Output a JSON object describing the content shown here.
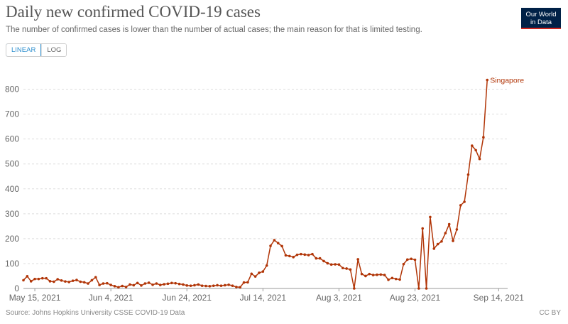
{
  "header": {
    "title": "Daily new confirmed COVID-19 cases",
    "subtitle": "The number of confirmed cases is lower than the number of actual cases; the main reason for that is limited testing."
  },
  "logo": {
    "line1": "Our World",
    "line2": "in Data",
    "accent": "#ce261e",
    "background": "#002147"
  },
  "scale_toggle": {
    "linear_label": "LINEAR",
    "log_label": "LOG",
    "selected": "LINEAR"
  },
  "footer": {
    "source": "Source: Johns Hopkins University CSSE COVID-19 Data",
    "license": "CC BY"
  },
  "chart_data": {
    "type": "line",
    "x_start": "2021-05-12",
    "x_end": "2021-09-16",
    "x_tick_labels": [
      "May 15, 2021",
      "Jun 4, 2021",
      "Jun 24, 2021",
      "Jul 14, 2021",
      "Aug 3, 2021",
      "Aug 23, 2021",
      "Sep 14, 2021"
    ],
    "x_tick_dates": [
      "2021-05-15",
      "2021-06-04",
      "2021-06-24",
      "2021-07-14",
      "2021-08-03",
      "2021-08-23",
      "2021-09-14"
    ],
    "ylim": [
      0,
      850
    ],
    "y_ticks": [
      0,
      100,
      200,
      300,
      400,
      500,
      600,
      700,
      800
    ],
    "y_tick_labels": [
      "0",
      "100",
      "200",
      "300",
      "400",
      "500",
      "600",
      "700",
      "800"
    ],
    "grid": "horizontal dashed",
    "series": [
      {
        "name": "Singapore",
        "color": "#b13507",
        "values": [
          33,
          49,
          29,
          38,
          38,
          41,
          41,
          29,
          27,
          37,
          32,
          28,
          26,
          31,
          34,
          27,
          25,
          20,
          33,
          45,
          14,
          20,
          21,
          14,
          9,
          5,
          10,
          6,
          16,
          13,
          22,
          12,
          20,
          23,
          15,
          20,
          14,
          17,
          19,
          22,
          21,
          18,
          16,
          12,
          11,
          13,
          16,
          11,
          10,
          9,
          11,
          13,
          11,
          13,
          15,
          11,
          6,
          5,
          24,
          25,
          59,
          48,
          63,
          68,
          92,
          171,
          194,
          182,
          170,
          133,
          130,
          126,
          135,
          138,
          136,
          134,
          138,
          121,
          121,
          110,
          101,
          96,
          97,
          96,
          82,
          80,
          76,
          0,
          117,
          58,
          50,
          58,
          54,
          55,
          56,
          54,
          35,
          42,
          38,
          36,
          98,
          116,
          119,
          115,
          0,
          241,
          0,
          287,
          160,
          178,
          189,
          222,
          258,
          191,
          237,
          334,
          348,
          457,
          573,
          555,
          520,
          607,
          837
        ]
      }
    ]
  }
}
